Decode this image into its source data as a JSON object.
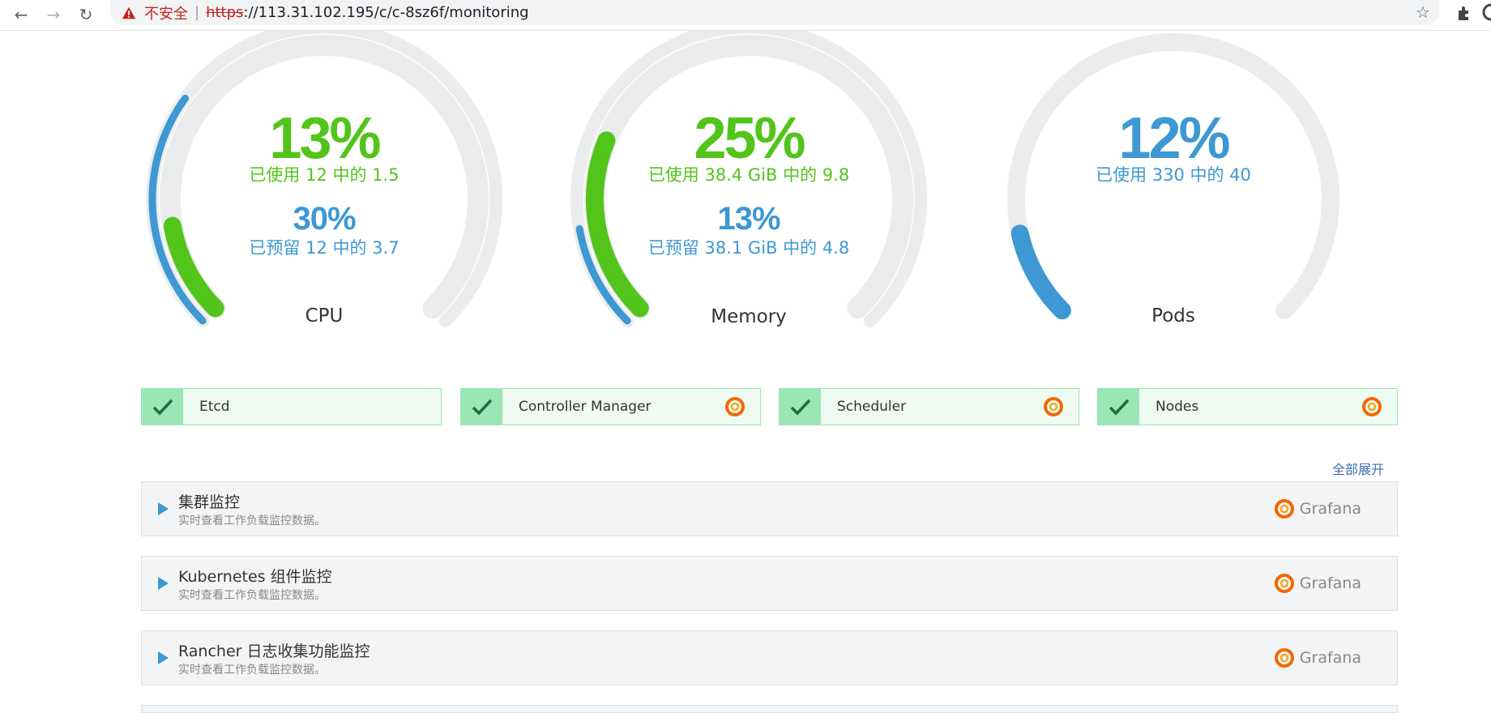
{
  "browser": {
    "not_secure": "不安全",
    "url_scheme": "https",
    "url_rest": "://113.31.102.195/c/c-8sz6f/monitoring"
  },
  "gauges": {
    "cpu": {
      "used_pct": "13%",
      "used_text": "已使用 12 中的 1.5",
      "reserved_pct": "30%",
      "reserved_text": "已预留 12 中的 3.7",
      "name": "CPU",
      "used_fraction": 0.13,
      "reserved_fraction": 0.3
    },
    "memory": {
      "used_pct": "25%",
      "used_text": "已使用 38.4 GiB 中的 9.8",
      "reserved_pct": "13%",
      "reserved_text": "已预留 38.1 GiB 中的 4.8",
      "name": "Memory",
      "used_fraction": 0.25,
      "reserved_fraction": 0.13
    },
    "pods": {
      "used_pct": "12%",
      "used_text": "已使用 330 中的 40",
      "name": "Pods",
      "used_fraction": 0.12
    }
  },
  "status": [
    {
      "label": "Etcd",
      "grafana": false
    },
    {
      "label": "Controller Manager",
      "grafana": true
    },
    {
      "label": "Scheduler",
      "grafana": true
    },
    {
      "label": "Nodes",
      "grafana": true
    }
  ],
  "expand_all": "全部展开",
  "panels": [
    {
      "title": "集群监控",
      "desc": "实时查看工作负载监控数据。",
      "link": "Grafana"
    },
    {
      "title": "Kubernetes 组件监控",
      "desc": "实时查看工作负载监控数据。",
      "link": "Grafana"
    },
    {
      "title": "Rancher 日志收集功能监控",
      "desc": "实时查看工作负载监控数据。",
      "link": "Grafana"
    }
  ],
  "colors": {
    "used": "#52c41a",
    "reserved": "#3d98d3",
    "track": "#eaeced",
    "status_bg": "#eefbf3",
    "status_accent": "#9ae6b4"
  }
}
